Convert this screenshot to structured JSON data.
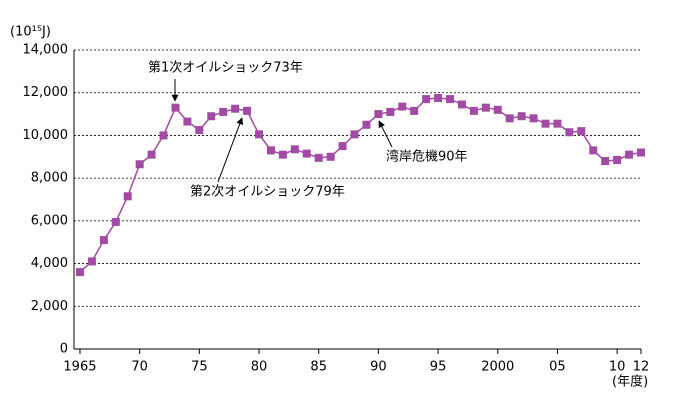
{
  "chart_data": {
    "type": "line",
    "y_unit_label": "(10¹⁵J)",
    "x_unit_label": "(年度)",
    "annotations": [
      "第1次オイルショック73年",
      "第2次オイルショック79年",
      "湾岸危機90年"
    ],
    "x": [
      1965,
      1966,
      1967,
      1968,
      1969,
      1970,
      1971,
      1972,
      1973,
      1974,
      1975,
      1976,
      1977,
      1978,
      1979,
      1980,
      1981,
      1982,
      1983,
      1984,
      1985,
      1986,
      1987,
      1988,
      1989,
      1990,
      1991,
      1992,
      1993,
      1994,
      1995,
      1996,
      1997,
      1998,
      1999,
      2000,
      2001,
      2002,
      2003,
      2004,
      2005,
      2006,
      2007,
      2008,
      2009,
      2010,
      2011,
      2012
    ],
    "series": [
      {
        "color": "#a24ba4",
        "values": [
          3600,
          4100,
          5100,
          5950,
          7150,
          8650,
          9100,
          10000,
          11300,
          10650,
          10250,
          10900,
          11100,
          11250,
          11150,
          10050,
          9300,
          9100,
          9350,
          9150,
          8950,
          9000,
          9500,
          10050,
          10500,
          11000,
          11100,
          11350,
          11150,
          11700,
          11750,
          11700,
          11450,
          11150,
          11300,
          11200,
          10800,
          10900,
          10800,
          10550,
          10550,
          10150,
          10200,
          9300,
          8800,
          8850,
          9100,
          9200
        ]
      }
    ],
    "xlim": [
      1964.5,
      2012
    ],
    "xticks": [
      1965,
      {
        "value": 1970,
        "label": "70"
      },
      {
        "value": 1975,
        "label": "75"
      },
      {
        "value": 1980,
        "label": "80"
      },
      {
        "value": 1985,
        "label": "85"
      },
      {
        "value": 1990,
        "label": "90"
      },
      {
        "value": 1995,
        "label": "95"
      },
      2000,
      {
        "value": 2005,
        "label": "05"
      },
      {
        "value": 2010,
        "label": "10"
      },
      {
        "value": 2012,
        "label": "12"
      }
    ],
    "ylim": [
      0,
      14000
    ],
    "yticks": [
      0,
      {
        "value": 2000,
        "label": "2,000"
      },
      {
        "value": 4000,
        "label": "4,000"
      },
      {
        "value": 6000,
        "label": "6,000"
      },
      {
        "value": 8000,
        "label": "8,000"
      },
      {
        "value": 10000,
        "label": "10,000"
      },
      {
        "value": 12000,
        "label": "12,000"
      },
      {
        "value": 14000,
        "label": "14,000"
      }
    ],
    "grid": true
  }
}
